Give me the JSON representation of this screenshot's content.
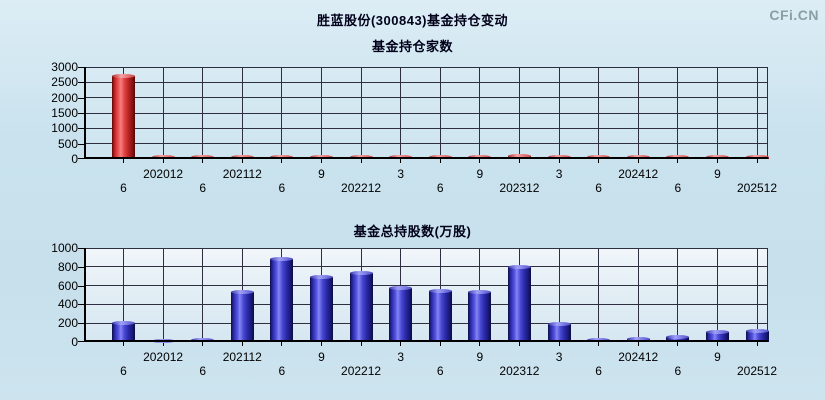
{
  "header": {
    "title": "胜蓝股份(300843)基金持仓变动",
    "logo": "CFi.CN"
  },
  "colors": {
    "bar_red": "#e03a3a",
    "bar_blue": "#4646d2",
    "grid": "#2e2e40",
    "axis": "#000000",
    "logo_text": "#8c9da5",
    "background_top": "#dcedf5",
    "background_bottom": "#cde4ef"
  },
  "x_tick_labels": [
    "6",
    "202012",
    "6",
    "202112",
    "6",
    "9",
    "202212",
    "3",
    "6",
    "9",
    "202312",
    "3",
    "6",
    "202412",
    "6",
    "9",
    "202512"
  ],
  "chart_data": [
    {
      "type": "bar",
      "title": "基金持仓家数",
      "xlabel": "",
      "ylabel": "",
      "ylim": [
        0,
        3000
      ],
      "yticks": [
        0,
        500,
        1000,
        1500,
        2000,
        2500,
        3000
      ],
      "grid": true,
      "legend_position": "none",
      "bar_style": "red",
      "categories": [
        "6",
        "202012",
        "6",
        "202112",
        "6",
        "9",
        "202212",
        "3",
        "6",
        "9",
        "202312",
        "3",
        "6",
        "202412",
        "6",
        "9",
        "202512"
      ],
      "values": [
        2700,
        60,
        60,
        60,
        60,
        60,
        60,
        60,
        60,
        60,
        100,
        60,
        60,
        60,
        60,
        60,
        60
      ]
    },
    {
      "type": "bar",
      "title": "基金总持股数(万股)",
      "xlabel": "",
      "ylabel": "",
      "ylim": [
        0,
        1000
      ],
      "yticks": [
        0,
        200,
        400,
        600,
        800,
        1000
      ],
      "grid": true,
      "legend_position": "none",
      "bar_style": "blue",
      "categories": [
        "6",
        "202012",
        "6",
        "202112",
        "6",
        "9",
        "202212",
        "3",
        "6",
        "9",
        "202312",
        "3",
        "6",
        "202412",
        "6",
        "9",
        "202512"
      ],
      "values": [
        200,
        12,
        25,
        530,
        880,
        690,
        730,
        570,
        540,
        530,
        800,
        190,
        20,
        30,
        55,
        105,
        115
      ]
    }
  ]
}
